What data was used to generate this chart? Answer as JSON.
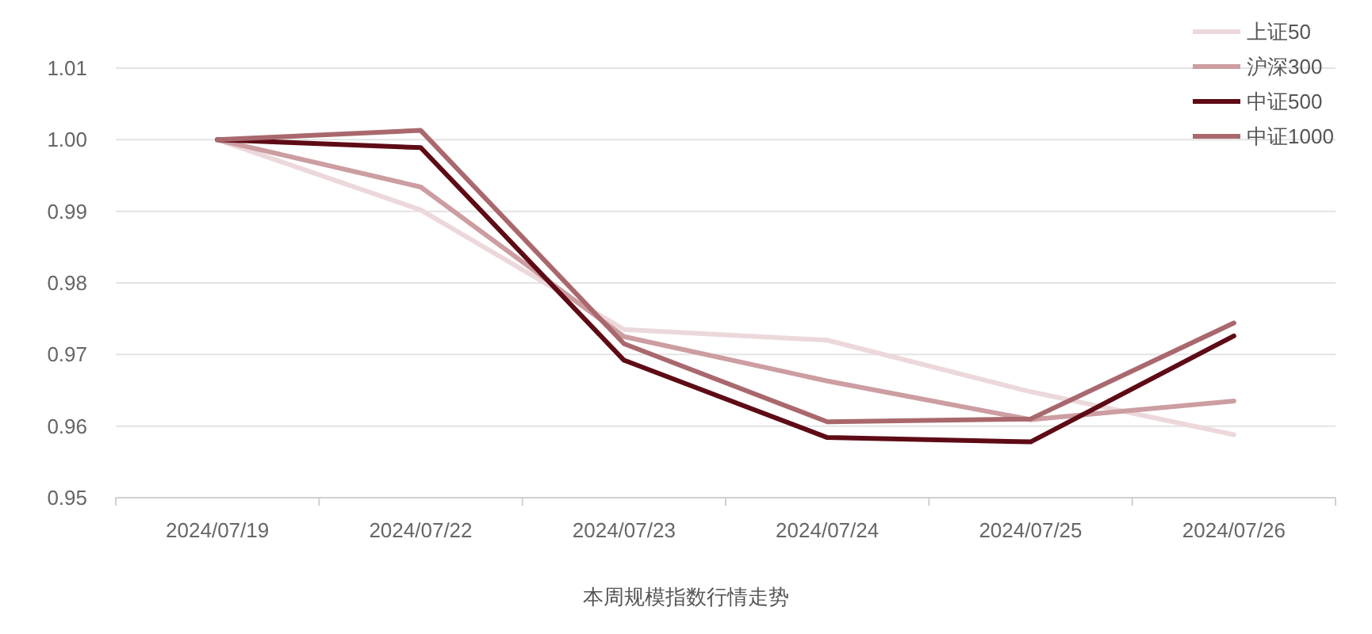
{
  "chart_data": {
    "type": "line",
    "categories": [
      "2024/07/19",
      "2024/07/22",
      "2024/07/23",
      "2024/07/24",
      "2024/07/25",
      "2024/07/26"
    ],
    "series": [
      {
        "name": "上证50",
        "color": "#ecd8db",
        "values": [
          1.0,
          0.9902,
          0.9735,
          0.972,
          0.9648,
          0.9588
        ]
      },
      {
        "name": "沪深300",
        "color": "#cc9da1",
        "values": [
          1.0,
          0.9934,
          0.9725,
          0.9663,
          0.9609,
          0.9635
        ]
      },
      {
        "name": "中证500",
        "color": "#5e0b16",
        "values": [
          1.0,
          0.9989,
          0.9692,
          0.9584,
          0.9578,
          0.9726
        ]
      },
      {
        "name": "中证1000",
        "color": "#a9686d",
        "values": [
          1.0,
          1.0013,
          0.9715,
          0.9606,
          0.961,
          0.9744
        ]
      }
    ],
    "ylim": [
      0.95,
      1.01
    ],
    "yticks": [
      0.95,
      0.96,
      0.97,
      0.98,
      0.99,
      {
        "value": 1.0,
        "label": "1.00"
      },
      1.01
    ],
    "grid": "y",
    "legend": "top right",
    "annotations": [
      "本周规模指数行情走势"
    ]
  }
}
